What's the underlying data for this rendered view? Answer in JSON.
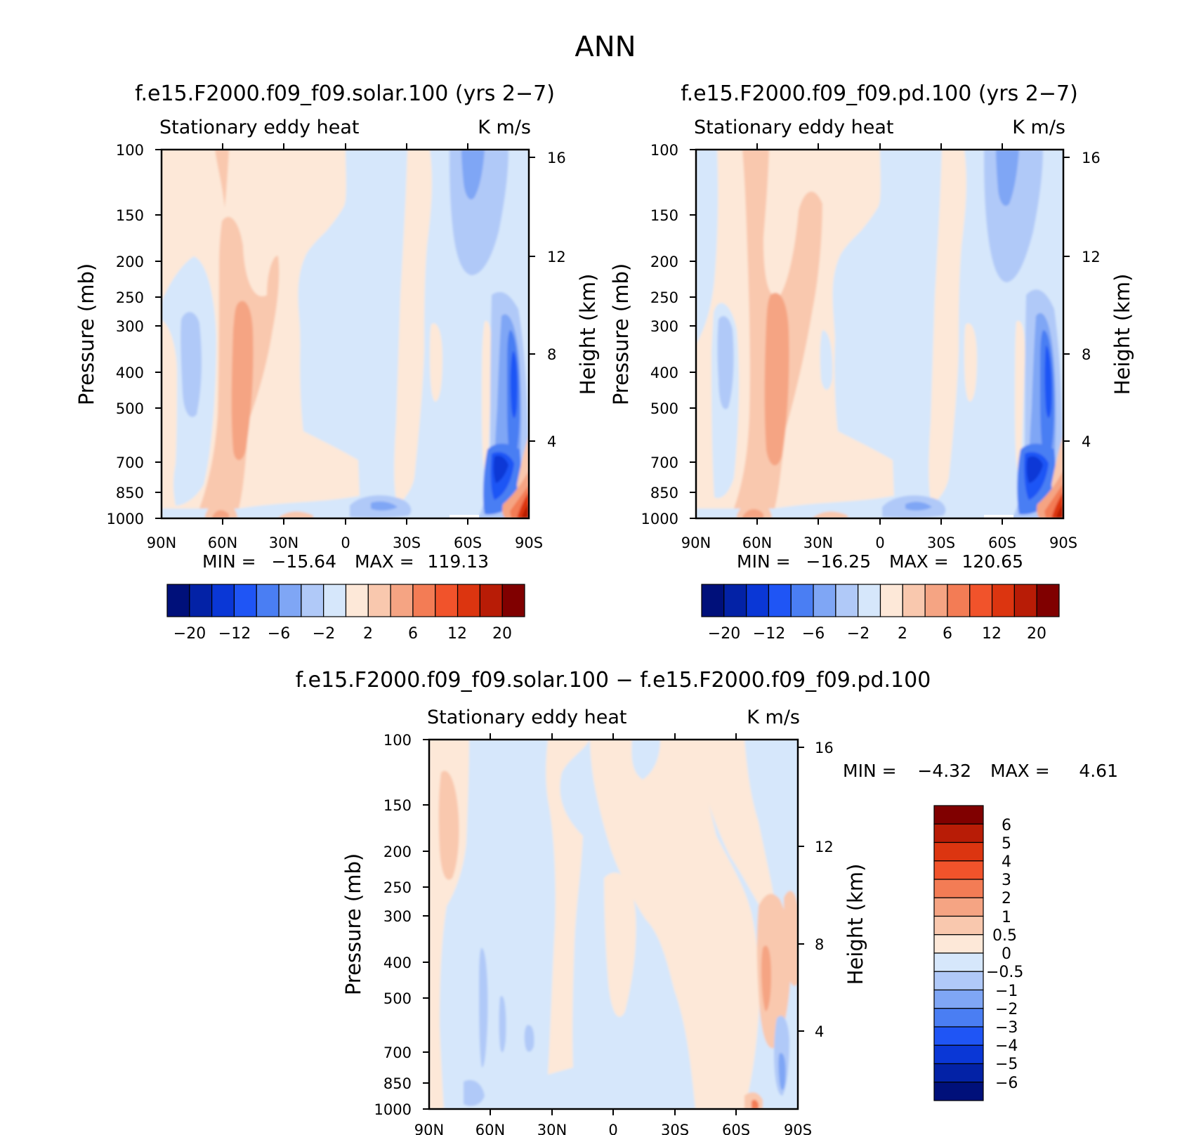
{
  "figure": {
    "title": "ANN"
  },
  "contour_colors": {
    "n8": "#00107a",
    "n7": "#0322a6",
    "n6": "#0a37d6",
    "n5": "#1f55f5",
    "n4": "#4a7ef3",
    "n3": "#7fa6f5",
    "n2": "#b0c9f8",
    "n1": "#d6e7fb",
    "p1": "#fde8d8",
    "p2": "#f9c8ae",
    "p3": "#f5a483",
    "p4": "#f37c55",
    "p5": "#f1532b",
    "p6": "#dc3510",
    "p7": "#b81c06",
    "p8": "#800000"
  },
  "chart_data": [
    {
      "type": "contour",
      "title": "f.e15.F2000.f09_f09.solar.100 (yrs 2−7)",
      "left_label": "Stationary eddy heat",
      "right_label": "K m/s",
      "xlabel": "",
      "ylabel": "Pressure (mb)",
      "y2label": "Height (km)",
      "x_ticks": [
        "90N",
        "60N",
        "30N",
        "0",
        "30S",
        "60S",
        "90S"
      ],
      "y_ticks": [
        100,
        150,
        200,
        250,
        300,
        400,
        500,
        700,
        850,
        1000
      ],
      "y2_ticks": [
        16,
        12,
        8,
        4
      ],
      "ylim": [
        1000,
        100
      ],
      "y_scale": "log",
      "stats": {
        "min_label": "MIN =",
        "min": "−15.64",
        "max_label": "MAX =",
        "max": "119.13"
      },
      "colorbar": {
        "orientation": "horizontal",
        "levels": [
          "−20",
          "−12",
          "−6",
          "−2",
          "2",
          "6",
          "12",
          "20"
        ]
      }
    },
    {
      "type": "contour",
      "title": "f.e15.F2000.f09_f09.pd.100 (yrs 2−7)",
      "left_label": "Stationary eddy heat",
      "right_label": "K m/s",
      "xlabel": "",
      "ylabel": "Pressure (mb)",
      "y2label": "Height (km)",
      "x_ticks": [
        "90N",
        "60N",
        "30N",
        "0",
        "30S",
        "60S",
        "90S"
      ],
      "y_ticks": [
        100,
        150,
        200,
        250,
        300,
        400,
        500,
        700,
        850,
        1000
      ],
      "y2_ticks": [
        16,
        12,
        8,
        4
      ],
      "ylim": [
        1000,
        100
      ],
      "y_scale": "log",
      "stats": {
        "min_label": "MIN =",
        "min": "−16.25",
        "max_label": "MAX =",
        "max": "120.65"
      },
      "colorbar": {
        "orientation": "horizontal",
        "levels": [
          "−20",
          "−12",
          "−6",
          "−2",
          "2",
          "6",
          "12",
          "20"
        ]
      }
    },
    {
      "type": "contour",
      "title": "f.e15.F2000.f09_f09.solar.100 − f.e15.F2000.f09_f09.pd.100",
      "left_label": "Stationary eddy heat",
      "right_label": "K m/s",
      "xlabel": "",
      "ylabel": "Pressure (mb)",
      "y2label": "Height (km)",
      "x_ticks": [
        "90N",
        "60N",
        "30N",
        "0",
        "30S",
        "60S",
        "90S"
      ],
      "y_ticks": [
        100,
        150,
        200,
        250,
        300,
        400,
        500,
        700,
        850,
        1000
      ],
      "y2_ticks": [
        16,
        12,
        8,
        4
      ],
      "ylim": [
        1000,
        100
      ],
      "y_scale": "log",
      "stats": {
        "min_label": "MIN =",
        "min": "−4.32",
        "max_label": "MAX =",
        "max": "4.61"
      },
      "colorbar": {
        "orientation": "vertical",
        "levels": [
          "6",
          "5",
          "4",
          "3",
          "2",
          "1",
          "0.5",
          "0",
          "−0.5",
          "−1",
          "−2",
          "−3",
          "−4",
          "−5",
          "−6"
        ]
      }
    }
  ]
}
